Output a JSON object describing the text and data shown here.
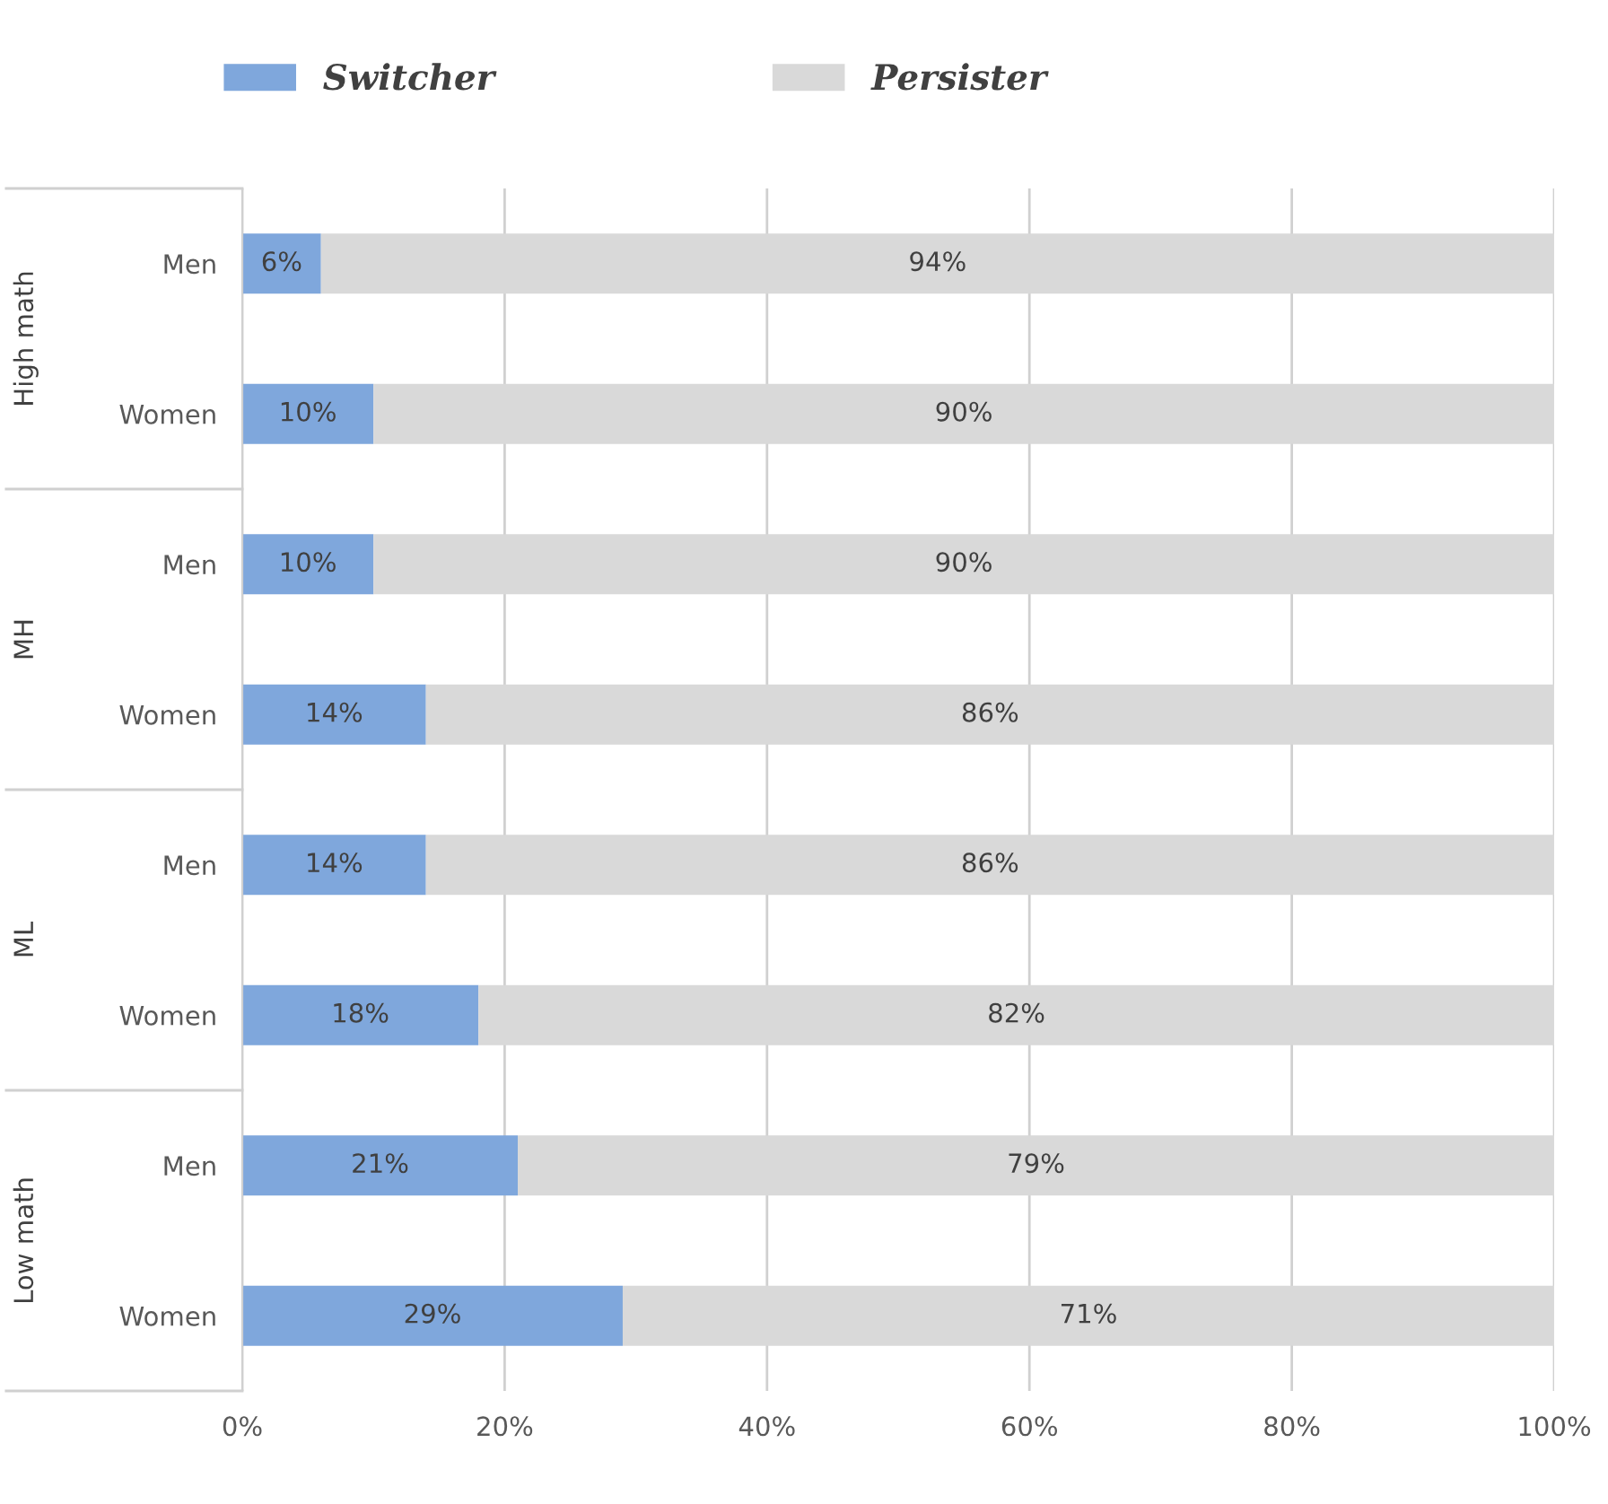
{
  "chart_data": {
    "type": "bar",
    "orientation": "horizontal",
    "stacked": true,
    "categories": [
      "Men",
      "Women",
      "Men",
      "Women",
      "Men",
      "Women",
      "Men",
      "Women"
    ],
    "series": [
      {
        "name": "Switcher",
        "color": "#7fa7dc",
        "values": [
          6,
          10,
          10,
          14,
          14,
          18,
          21,
          29
        ],
        "value_labels": [
          "6%",
          "10%",
          "10%",
          "14%",
          "14%",
          "18%",
          "21%",
          "29%"
        ]
      },
      {
        "name": "Persister",
        "color": "#d9d9d9",
        "values": [
          94,
          90,
          90,
          86,
          86,
          82,
          79,
          71
        ],
        "value_labels": [
          "94%",
          "90%",
          "90%",
          "86%",
          "86%",
          "82%",
          "79%",
          "71%"
        ]
      }
    ],
    "annotations": [
      "High math",
      "MH",
      "ML",
      "Low math"
    ],
    "xlim": [
      0,
      100
    ],
    "xticks": [
      {
        "value": 0,
        "label": "0%"
      },
      {
        "value": 20,
        "label": "20%"
      },
      {
        "value": 40,
        "label": "40%"
      },
      {
        "value": 60,
        "label": "60%"
      },
      {
        "value": 80,
        "label": "80%"
      },
      {
        "value": 100,
        "label": "100%"
      }
    ],
    "grid": "x",
    "legend": "top"
  }
}
